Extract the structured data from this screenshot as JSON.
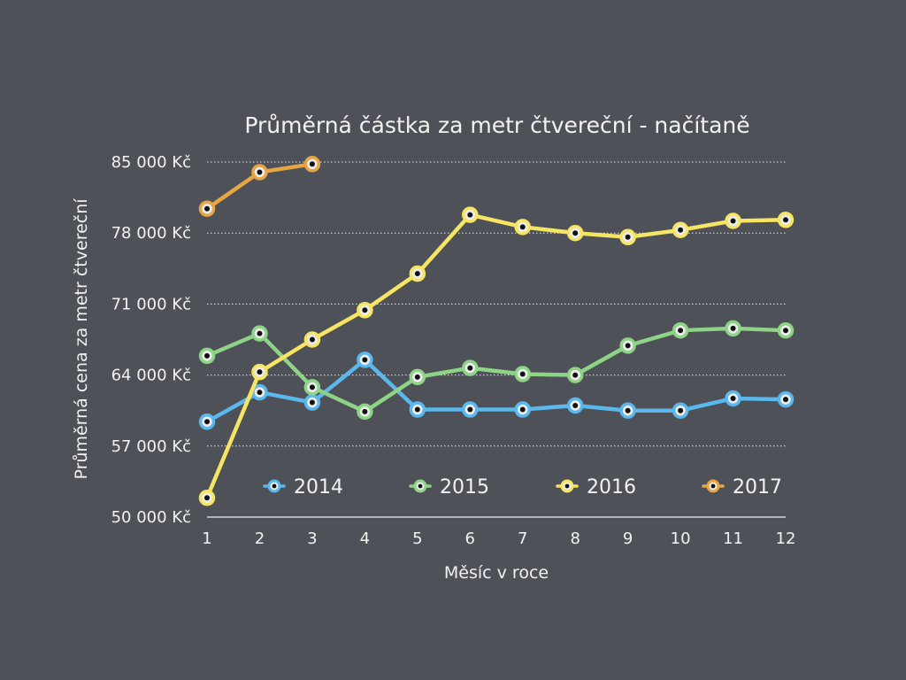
{
  "chart_data": {
    "type": "line",
    "title": "Průměrná částka za metr čtvereční - načítaně",
    "xlabel": "Měsíc v roce",
    "ylabel": "Průměrná cena za metr čtvereční",
    "x": [
      1,
      2,
      3,
      4,
      5,
      6,
      7,
      8,
      9,
      10,
      11,
      12
    ],
    "x_tick_labels": [
      "1",
      "2",
      "3",
      "4",
      "5",
      "6",
      "7",
      "8",
      "9",
      "10",
      "11",
      "12"
    ],
    "ylim": [
      50000,
      85000
    ],
    "y_ticks": [
      50000,
      57000,
      64000,
      71000,
      78000,
      85000
    ],
    "y_tick_labels": [
      "50 000 Kč",
      "57 000 Kč",
      "64 000 Kč",
      "71 000 Kč",
      "78 000 Kč",
      "85 000 Kč"
    ],
    "grid": "horizontal-dotted",
    "legend_position": "bottom-inside",
    "series": [
      {
        "name": "2014",
        "color": "#5ab8ec",
        "values": [
          59400,
          62300,
          61300,
          65500,
          60600,
          60600,
          60600,
          61000,
          60500,
          60500,
          61700,
          61600
        ]
      },
      {
        "name": "2015",
        "color": "#8ed486",
        "values": [
          65900,
          68100,
          62800,
          60400,
          63800,
          64700,
          64100,
          64000,
          66900,
          68400,
          68600,
          68400
        ]
      },
      {
        "name": "2016",
        "color": "#f6e463",
        "values": [
          51900,
          64300,
          67500,
          70400,
          74000,
          79800,
          78600,
          78000,
          77600,
          78300,
          79200,
          79300
        ]
      },
      {
        "name": "2017",
        "color": "#e7a644",
        "values": [
          80400,
          84000,
          84800,
          null,
          null,
          null,
          null,
          null,
          null,
          null,
          null,
          null
        ]
      }
    ]
  }
}
